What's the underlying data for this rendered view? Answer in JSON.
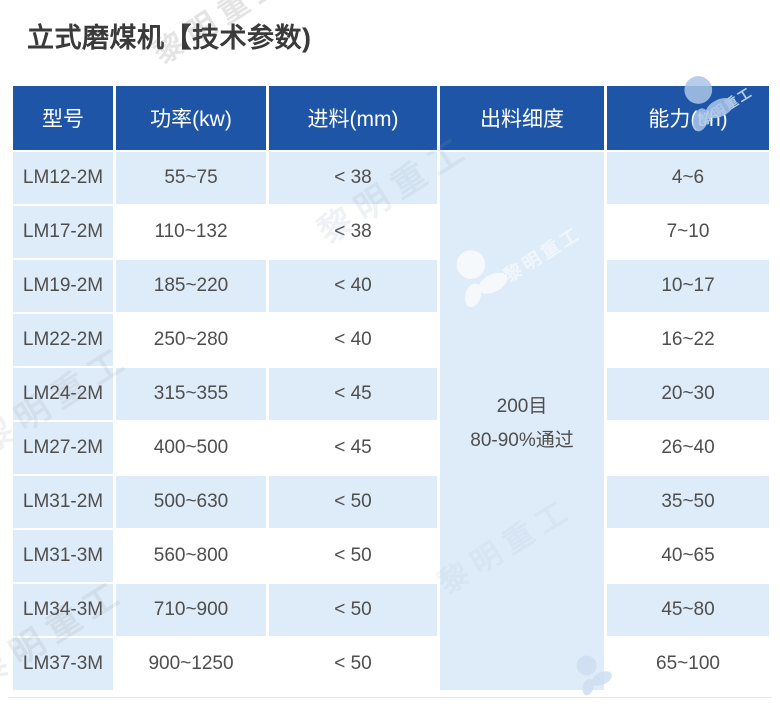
{
  "page": {
    "title": "立式磨煤机【技术参数)"
  },
  "watermark": {
    "text": "黎明重工"
  },
  "table": {
    "headers": [
      "型号",
      "功率(kw)",
      "进料(mm)",
      "出料细度",
      "能力(t/h)"
    ],
    "merged_fineness": {
      "line1": "200目",
      "line2": "80-90%通过"
    },
    "rows": [
      {
        "model": "LM12-2M",
        "power": "55~75",
        "feed": "< 38",
        "capacity": "4~6"
      },
      {
        "model": "LM17-2M",
        "power": "110~132",
        "feed": "< 38",
        "capacity": "7~10"
      },
      {
        "model": "LM19-2M",
        "power": "185~220",
        "feed": "< 40",
        "capacity": "10~17"
      },
      {
        "model": "LM22-2M",
        "power": "250~280",
        "feed": "< 40",
        "capacity": "16~22"
      },
      {
        "model": "LM24-2M",
        "power": "315~355",
        "feed": "< 45",
        "capacity": "20~30"
      },
      {
        "model": "LM27-2M",
        "power": "400~500",
        "feed": "< 45",
        "capacity": "26~40"
      },
      {
        "model": "LM31-2M",
        "power": "500~630",
        "feed": "< 50",
        "capacity": "35~50"
      },
      {
        "model": "LM31-3M",
        "power": "560~800",
        "feed": "< 50",
        "capacity": "40~65"
      },
      {
        "model": "LM34-3M",
        "power": "710~900",
        "feed": "< 50",
        "capacity": "45~80"
      },
      {
        "model": "LM37-3M",
        "power": "900~1250",
        "feed": "< 50",
        "capacity": "65~100"
      }
    ],
    "colors": {
      "header_bg": "#1e55a6",
      "header_text": "#ffffff",
      "tint": "#deebf8",
      "body_text": "#4e4e4e",
      "title_text": "#3a3a3a",
      "divider": "#e8e8e8"
    }
  }
}
